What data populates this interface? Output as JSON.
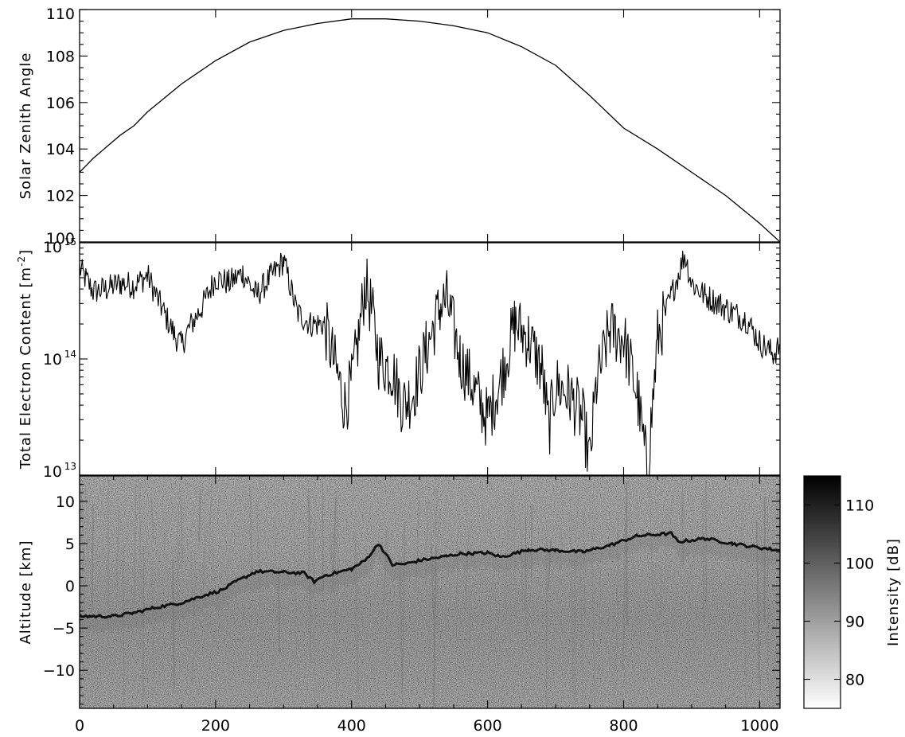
{
  "chart_data": [
    {
      "type": "line",
      "panel": "top",
      "ylabel": "Solar Zenith Angle",
      "ylim": [
        100,
        110
      ],
      "xlim": [
        0,
        1030
      ],
      "yticks": [
        "100",
        "102",
        "104",
        "106",
        "108",
        "110"
      ],
      "series": [
        {
          "x": [
            0,
            20,
            40,
            60,
            80,
            100,
            150,
            200,
            250,
            300,
            350,
            400,
            450,
            500,
            550,
            600,
            650,
            700,
            750,
            800,
            850,
            900,
            950,
            1000,
            1030
          ],
          "y": [
            103.0,
            103.6,
            104.1,
            104.6,
            105.0,
            105.6,
            106.8,
            107.8,
            108.6,
            109.1,
            109.4,
            109.6,
            109.6,
            109.5,
            109.3,
            109.0,
            108.4,
            107.6,
            106.3,
            104.9,
            104.0,
            103.0,
            102.0,
            100.8,
            100.0
          ]
        }
      ]
    },
    {
      "type": "line",
      "panel": "middle",
      "ylabel": "Total Electron Content",
      "ylabel_unit": "[m",
      "ylabel_exp": "-2",
      "ylabel_close": "]",
      "yscale": "log",
      "ylim": [
        10000000000000.0,
        1000000000000000.0
      ],
      "xlim": [
        0,
        1030
      ],
      "yticks": [
        {
          "base": "10",
          "exp": "13",
          "value": 10000000000000.0
        },
        {
          "base": "10",
          "exp": "14",
          "value": 100000000000000.0
        },
        {
          "base": "10",
          "exp": "15",
          "value": 1000000000000000.0
        }
      ],
      "series": [
        {
          "x": [
            0,
            20,
            40,
            60,
            80,
            100,
            120,
            140,
            150,
            160,
            180,
            200,
            220,
            240,
            260,
            280,
            300,
            320,
            340,
            360,
            380,
            390,
            400,
            410,
            420,
            430,
            440,
            460,
            475,
            490,
            510,
            530,
            540,
            560,
            580,
            600,
            620,
            640,
            660,
            680,
            690,
            700,
            720,
            740,
            750,
            760,
            780,
            800,
            820,
            835,
            850,
            870,
            890,
            900,
            920,
            940,
            960,
            980,
            1000,
            1020,
            1030
          ],
          "y": [
            600000000000000.0,
            380000000000000.0,
            400000000000000.0,
            450000000000000.0,
            430000000000000.0,
            520000000000000.0,
            280000000000000.0,
            160000000000000.0,
            130000000000000.0,
            180000000000000.0,
            280000000000000.0,
            500000000000000.0,
            450000000000000.0,
            550000000000000.0,
            350000000000000.0,
            500000000000000.0,
            700000000000000.0,
            250000000000000.0,
            200000000000000.0,
            200000000000000.0,
            70000000000000.0,
            40000000000000.0,
            60000000000000.0,
            150000000000000.0,
            450000000000000.0,
            250000000000000.0,
            100000000000000.0,
            80000000000000.0,
            40000000000000.0,
            50000000000000.0,
            120000000000000.0,
            280000000000000.0,
            320000000000000.0,
            100000000000000.0,
            55000000000000.0,
            30000000000000.0,
            70000000000000.0,
            200000000000000.0,
            150000000000000.0,
            80000000000000.0,
            25000000000000.0,
            60000000000000.0,
            50000000000000.0,
            30000000000000.0,
            13000000000000.0,
            60000000000000.0,
            180000000000000.0,
            150000000000000.0,
            50000000000000.0,
            10500000000000.0,
            150000000000000.0,
            350000000000000.0,
            800000000000000.0,
            450000000000000.0,
            350000000000000.0,
            300000000000000.0,
            250000000000000.0,
            220000000000000.0,
            140000000000000.0,
            110000000000000.0,
            130000000000000.0
          ]
        }
      ]
    },
    {
      "type": "heatmap",
      "panel": "bottom",
      "ylabel": "Altitude [km]",
      "ylim": [
        -14.5,
        13
      ],
      "xlim": [
        0,
        1030
      ],
      "yticks": [
        "−10",
        "−5",
        "0",
        "5",
        "10"
      ],
      "ytick_values": [
        -10,
        -5,
        0,
        5,
        10
      ],
      "xticks": [
        "0",
        "200",
        "400",
        "600",
        "800",
        "1000"
      ],
      "xtick_values": [
        0,
        200,
        400,
        600,
        800,
        1000
      ],
      "colormap": "gray_r",
      "surface_echo": {
        "x": [
          0,
          50,
          80,
          110,
          150,
          180,
          210,
          230,
          260,
          300,
          330,
          345,
          360,
          400,
          420,
          440,
          460,
          480,
          500,
          540,
          560,
          600,
          620,
          660,
          700,
          740,
          780,
          820,
          870,
          880,
          920,
          960,
          1000,
          1030
        ],
        "y": [
          -3.6,
          -3.6,
          -3.2,
          -2.6,
          -2.0,
          -1.2,
          -0.5,
          0.5,
          1.7,
          1.6,
          1.5,
          0.5,
          1.2,
          2.0,
          3.0,
          5.0,
          2.5,
          2.6,
          3.0,
          3.5,
          3.8,
          3.9,
          3.4,
          4.3,
          4.2,
          4.0,
          4.8,
          5.9,
          6.2,
          5.2,
          5.6,
          5.0,
          4.5,
          4.2
        ]
      },
      "colorbar": {
        "label": "Intensity [dB]",
        "range": [
          75,
          115
        ],
        "ticks": [
          "80",
          "90",
          "100",
          "110"
        ],
        "tick_values": [
          80,
          90,
          100,
          110
        ]
      }
    }
  ]
}
